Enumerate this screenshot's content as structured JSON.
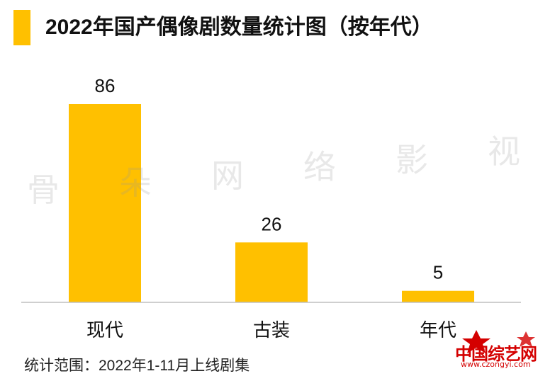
{
  "title": "2022年国产偶像剧数量统计图（按年代）",
  "footnote": "统计范围：2022年1-11月上线剧集",
  "watermark": [
    "骨",
    "朵",
    "网",
    "络",
    "影",
    "视"
  ],
  "logo": {
    "name": "中国综艺网",
    "url": "www.czongyi.com"
  },
  "colors": {
    "bar": "#FFC000",
    "accent": "#FFC000",
    "axis": "#BFBFBF",
    "logo": "#D40000"
  },
  "chart_data": {
    "type": "bar",
    "title": "2022年国产偶像剧数量统计图（按年代）",
    "categories": [
      "现代",
      "古装",
      "年代"
    ],
    "values": [
      86,
      26,
      5
    ],
    "xlabel": "",
    "ylabel": "",
    "ylim": [
      0,
      86
    ],
    "grid": false,
    "legend": "none",
    "data_labels": true
  }
}
